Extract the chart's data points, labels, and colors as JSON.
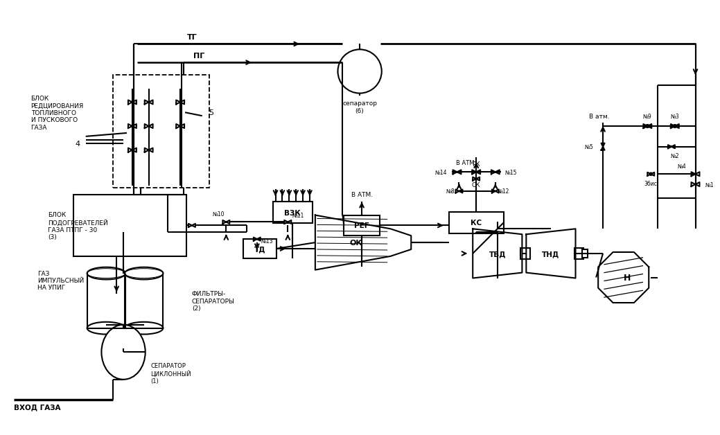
{
  "bg": "#ffffff",
  "lc": "#000000",
  "figw": 10.17,
  "figh": 6.16,
  "dpi": 100,
  "labels": {
    "blok_red": "БЛОК\nРЕДЦИРОВАНИЯ\nТОПЛИВНОГО\nИ ПУСКОВОГО\nГАЗА",
    "blok_pod": "БЛОК\nПОДОГРЕВАТЕЛЕЙ\nГАЗА ПТПГ - 30\n(3)",
    "gaz_imp": "ГАЗ\nИМПУЛЬСНЫЙ\nНА УПИГ",
    "filtr": "ФИЛЬТРЫ-\nСЕПАРАТОРЫ\n(2)",
    "sep_cikl": "СЕПАРАТОР\nЦИКЛОННЫЙ\n(1)",
    "vhod": "ВХОД ГАЗА",
    "TG": "ТГ",
    "PG": "ПГ",
    "sep6": "сепаратор\n(6)",
    "v_atm1": "В АТМ.",
    "v_atm2": "В атм.",
    "VZK": "ВЗК",
    "REG": "РЕГ",
    "KS": "КС",
    "SK": "СК",
    "RK": "РК",
    "TVD": "ТВД",
    "TND": "ТНД",
    "N": "Н",
    "OK": "ОК",
    "TD": "ТД",
    "n4": "4",
    "n5": "5",
    "n8": "№8",
    "n9": "№9",
    "n10": "№10",
    "n11": "№11",
    "n12": "№12",
    "n13": "№13",
    "n14": "№14",
    "n15": "№15",
    "n1": "№1",
    "n2": "№2",
    "n3": "№3",
    "n4v": "№4",
    "n5v": "№5",
    "n3bis": "3бис"
  }
}
